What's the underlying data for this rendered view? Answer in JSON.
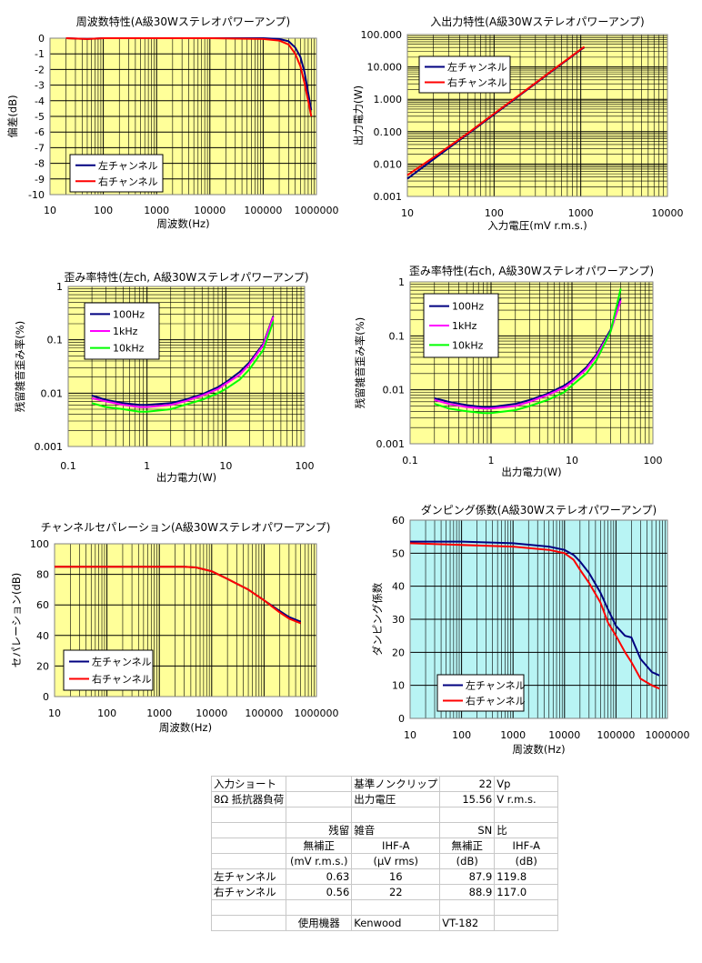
{
  "chart_data": [
    {
      "id": "c1",
      "type": "line",
      "title": "周波数特性(A級30Wステレオパワーアンプ)",
      "xlabel": "周波数(Hz)",
      "ylabel": "偏差(dB)",
      "xscale": "log",
      "xlim": [
        10,
        1000000
      ],
      "ylim": [
        -10,
        0
      ],
      "xticks": [
        10,
        100,
        1000,
        10000,
        100000,
        1000000
      ],
      "xtick_labels": [
        "10",
        "100",
        "1000",
        "10000",
        "100000",
        "1000000"
      ],
      "yticks": [
        0,
        -1,
        -2,
        -3,
        -4,
        -5,
        -6,
        -7,
        -8,
        -9,
        -10
      ],
      "ytick_labels": [
        "0",
        "-1",
        "-2",
        "-3",
        "-4",
        "-5",
        "-6",
        "-7",
        "-8",
        "-9",
        "-10"
      ],
      "grid": true,
      "background": "#ffff99",
      "legend_position": "bottom-left",
      "series": [
        {
          "name": "左チャンネル",
          "color": "#000080",
          "x": [
            20,
            50,
            100,
            1000,
            10000,
            100000,
            200000,
            300000,
            400000,
            500000,
            600000,
            700000,
            800000
          ],
          "y": [
            0,
            -0.05,
            0,
            0,
            0,
            0,
            -0.05,
            -0.2,
            -0.6,
            -1.2,
            -2.2,
            -3.5,
            -4.6
          ]
        },
        {
          "name": "右チャンネル",
          "color": "#ff0000",
          "x": [
            20,
            50,
            100,
            1000,
            10000,
            100000,
            200000,
            300000,
            400000,
            500000,
            600000,
            700000,
            800000
          ],
          "y": [
            0,
            -0.05,
            0,
            0,
            0,
            -0.05,
            -0.15,
            -0.4,
            -1.0,
            -1.8,
            -2.9,
            -4.0,
            -5.0
          ]
        }
      ]
    },
    {
      "id": "c2",
      "type": "line",
      "title": "入出力特性(A級30Wステレオパワーアンプ)",
      "xlabel": "入力電圧(mV r.m.s.)",
      "ylabel": "出力電力(W)",
      "xscale": "log",
      "yscale": "log",
      "xlim": [
        10,
        10000
      ],
      "ylim": [
        0.001,
        100
      ],
      "xticks": [
        10,
        100,
        1000,
        10000
      ],
      "xtick_labels": [
        "10",
        "100",
        "1000",
        "10000"
      ],
      "yticks": [
        0.001,
        0.01,
        0.1,
        1,
        10,
        100
      ],
      "ytick_labels": [
        "0.001",
        "0.010",
        "0.100",
        "1.000",
        "10.000",
        "100.000"
      ],
      "grid": true,
      "background": "#ffff99",
      "legend_position": "top-left",
      "series": [
        {
          "name": "左チャンネル",
          "color": "#000080",
          "x": [
            10,
            20,
            50,
            100,
            200,
            500,
            1000,
            1100
          ],
          "y": [
            0.0035,
            0.014,
            0.085,
            0.34,
            1.36,
            8.5,
            34,
            40
          ]
        },
        {
          "name": "右チャンネル",
          "color": "#ff0000",
          "x": [
            10,
            20,
            50,
            100,
            200,
            500,
            1000,
            1100
          ],
          "y": [
            0.0045,
            0.016,
            0.09,
            0.36,
            1.42,
            8.9,
            35,
            42
          ]
        }
      ]
    },
    {
      "id": "c3",
      "type": "line",
      "title": "歪み率特性(左ch, A級30Wステレオパワーアンプ)",
      "xlabel": "出力電力(W)",
      "ylabel": "残留雑音歪み率(%)",
      "xscale": "log",
      "yscale": "log",
      "xlim": [
        0.1,
        100
      ],
      "ylim": [
        0.001,
        1
      ],
      "xticks": [
        0.1,
        1,
        10,
        100
      ],
      "xtick_labels": [
        "0.1",
        "1",
        "10",
        "100"
      ],
      "yticks": [
        0.001,
        0.01,
        0.1,
        1
      ],
      "ytick_labels": [
        "0.001",
        "0.01",
        "0.1",
        "1"
      ],
      "grid": true,
      "background": "#ffff99",
      "legend_position": "top-left",
      "series": [
        {
          "name": "100Hz",
          "color": "#000080",
          "x": [
            0.2,
            0.3,
            0.5,
            0.8,
            1,
            2,
            3,
            5,
            8,
            10,
            15,
            20,
            30,
            40
          ],
          "y": [
            0.009,
            0.0075,
            0.0065,
            0.006,
            0.006,
            0.0065,
            0.0075,
            0.0095,
            0.013,
            0.016,
            0.025,
            0.038,
            0.085,
            0.28
          ]
        },
        {
          "name": "1kHz",
          "color": "#ff00ff",
          "x": [
            0.2,
            0.3,
            0.5,
            0.8,
            1,
            2,
            3,
            5,
            8,
            10,
            15,
            20,
            30,
            40
          ],
          "y": [
            0.008,
            0.007,
            0.006,
            0.0055,
            0.0055,
            0.006,
            0.007,
            0.009,
            0.012,
            0.015,
            0.022,
            0.035,
            0.08,
            0.27
          ]
        },
        {
          "name": "10kHz",
          "color": "#00ff00",
          "x": [
            0.2,
            0.3,
            0.5,
            0.8,
            1,
            2,
            3,
            5,
            8,
            10,
            15,
            20,
            30,
            40
          ],
          "y": [
            0.0065,
            0.0055,
            0.005,
            0.0045,
            0.0045,
            0.005,
            0.006,
            0.0075,
            0.01,
            0.012,
            0.018,
            0.028,
            0.065,
            0.22
          ]
        }
      ]
    },
    {
      "id": "c4",
      "type": "line",
      "title": "歪み率特性(右ch, A級30Wステレオパワーアンプ)",
      "xlabel": "出力電力(W)",
      "ylabel": "残留雑音歪み率(%)",
      "xscale": "log",
      "yscale": "log",
      "xlim": [
        0.1,
        100
      ],
      "ylim": [
        0.001,
        1
      ],
      "xticks": [
        0.1,
        1,
        10,
        100
      ],
      "xtick_labels": [
        "0.1",
        "1",
        "10",
        "100"
      ],
      "yticks": [
        0.001,
        0.01,
        0.1,
        1
      ],
      "ytick_labels": [
        "0.001",
        "0.01",
        "0.1",
        "1"
      ],
      "grid": true,
      "background": "#ffff99",
      "legend_position": "top-left",
      "series": [
        {
          "name": "100Hz",
          "color": "#000080",
          "x": [
            0.2,
            0.3,
            0.5,
            0.8,
            1,
            2,
            3,
            5,
            8,
            10,
            15,
            20,
            30,
            40
          ],
          "y": [
            0.007,
            0.006,
            0.0052,
            0.0048,
            0.0048,
            0.0055,
            0.0065,
            0.0085,
            0.012,
            0.015,
            0.026,
            0.045,
            0.13,
            0.5
          ]
        },
        {
          "name": "1kHz",
          "color": "#ff00ff",
          "x": [
            0.2,
            0.3,
            0.5,
            0.8,
            1,
            2,
            3,
            5,
            8,
            10,
            15,
            20,
            30,
            40
          ],
          "y": [
            0.0065,
            0.0055,
            0.0048,
            0.0045,
            0.0045,
            0.005,
            0.006,
            0.008,
            0.011,
            0.014,
            0.024,
            0.042,
            0.12,
            0.45
          ]
        },
        {
          "name": "10kHz",
          "color": "#00ff00",
          "x": [
            0.2,
            0.3,
            0.5,
            0.8,
            1,
            2,
            3,
            5,
            8,
            10,
            15,
            20,
            30,
            40
          ],
          "y": [
            0.0055,
            0.0045,
            0.004,
            0.0037,
            0.0037,
            0.0042,
            0.005,
            0.0065,
            0.009,
            0.012,
            0.02,
            0.035,
            0.12,
            0.75
          ]
        }
      ]
    },
    {
      "id": "c5",
      "type": "line",
      "title": "チャンネルセパレーション(A級30Wステレオパワーアンプ)",
      "xlabel": "周波数(Hz)",
      "ylabel": "セパレーション(dB)",
      "xscale": "log",
      "xlim": [
        10,
        1000000
      ],
      "ylim": [
        0,
        100
      ],
      "xticks": [
        10,
        100,
        1000,
        10000,
        100000,
        1000000
      ],
      "xtick_labels": [
        "10",
        "100",
        "1000",
        "10000",
        "100000",
        "1000000"
      ],
      "yticks": [
        0,
        20,
        40,
        60,
        80,
        100
      ],
      "ytick_labels": [
        "0",
        "20",
        "40",
        "60",
        "80",
        "100"
      ],
      "grid": true,
      "background": "#ffff99",
      "legend_position": "bottom-left",
      "series": [
        {
          "name": "左チャンネル",
          "color": "#000080",
          "x": [
            10,
            100,
            1000,
            3000,
            5000,
            10000,
            20000,
            50000,
            100000,
            200000,
            300000,
            500000
          ],
          "y": [
            85,
            85,
            85,
            85,
            84.5,
            82,
            77,
            70,
            63,
            56,
            52,
            49
          ]
        },
        {
          "name": "右チャンネル",
          "color": "#ff0000",
          "x": [
            10,
            100,
            1000,
            3000,
            5000,
            10000,
            20000,
            50000,
            100000,
            200000,
            300000,
            500000
          ],
          "y": [
            85,
            85,
            85,
            85,
            84.5,
            82,
            77,
            70,
            63,
            55,
            51,
            48
          ]
        }
      ]
    },
    {
      "id": "c6",
      "type": "line",
      "title": "ダンピング係数(A級30Wステレオパワーアンプ)",
      "xlabel": "周波数(Hz)",
      "ylabel": "ダンピング係数",
      "xscale": "log",
      "xlim": [
        10,
        1000000
      ],
      "ylim": [
        0,
        60
      ],
      "xticks": [
        10,
        100,
        1000,
        10000,
        100000,
        1000000
      ],
      "xtick_labels": [
        "10",
        "100",
        "1000",
        "10000",
        "100000",
        "1000000"
      ],
      "yticks": [
        0,
        10,
        20,
        30,
        40,
        50,
        60
      ],
      "ytick_labels": [
        "0",
        "10",
        "20",
        "30",
        "40",
        "50",
        "60"
      ],
      "grid": true,
      "background": "#b8f4f4",
      "legend_position": "bottom-left",
      "series": [
        {
          "name": "左チャンネル",
          "color": "#000080",
          "x": [
            10,
            100,
            1000,
            5000,
            10000,
            15000,
            20000,
            30000,
            50000,
            70000,
            100000,
            150000,
            200000,
            300000,
            500000,
            700000
          ],
          "y": [
            53.5,
            53.5,
            53,
            52,
            51,
            49.5,
            47.5,
            44,
            38,
            33,
            28,
            25,
            24.5,
            18,
            14,
            13
          ]
        },
        {
          "name": "右チャンネル",
          "color": "#ff0000",
          "x": [
            10,
            100,
            1000,
            5000,
            10000,
            15000,
            20000,
            30000,
            50000,
            70000,
            100000,
            150000,
            200000,
            300000,
            500000,
            700000
          ],
          "y": [
            53,
            52.5,
            52,
            51,
            50,
            48,
            45,
            41,
            35,
            29,
            25,
            20,
            17,
            12,
            10,
            9
          ]
        }
      ]
    }
  ],
  "table": {
    "rows": [
      [
        "入力ショート",
        "",
        "基準ノンクリップ",
        "22",
        "Vp"
      ],
      [
        "8Ω 抵抗器負荷",
        "",
        "出力電圧",
        "15.56",
        "V r.m.s."
      ],
      [
        "",
        "",
        "",
        "",
        ""
      ],
      [
        "",
        "残留",
        "雑音",
        "SN",
        "比"
      ],
      [
        "",
        "無補正",
        "IHF-A",
        "無補正",
        "IHF-A"
      ],
      [
        "",
        "(mV r.m.s.)",
        "(μV rms)",
        "(dB)",
        "(dB)"
      ],
      [
        "左チャンネル",
        "0.63",
        "16",
        "87.9",
        "119.8"
      ],
      [
        "右チャンネル",
        "0.56",
        "22",
        "88.9",
        "117.0"
      ],
      [
        "",
        "",
        "",
        "",
        ""
      ],
      [
        "",
        "使用機器",
        "Kenwood",
        "VT-182",
        ""
      ]
    ]
  }
}
